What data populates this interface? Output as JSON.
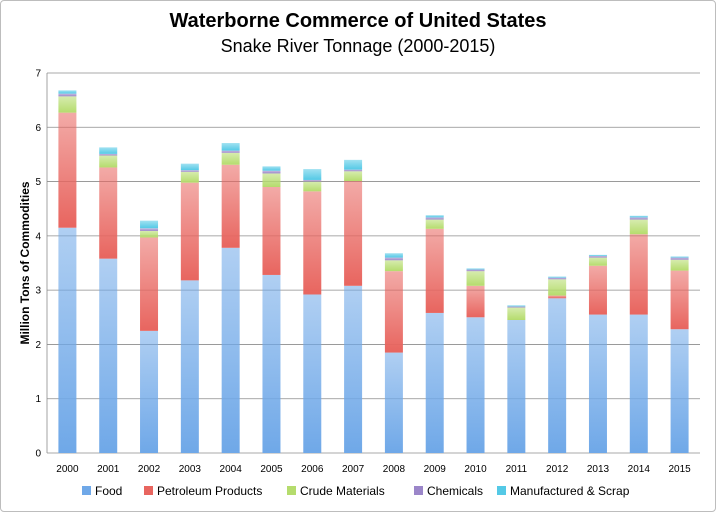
{
  "chart_data": {
    "type": "bar",
    "stacked": true,
    "title": "Waterborne Commerce of United States",
    "subtitle": "Snake River Tonnage (2000-2015)",
    "xlabel": "",
    "ylabel": "Million Tons of Commodities",
    "ylim": [
      0,
      7
    ],
    "yticks": [
      "0",
      "1",
      "2",
      "3",
      "4",
      "5",
      "6",
      "7"
    ],
    "grid": true,
    "legend_position": "bottom",
    "categories": [
      "2000",
      "2001",
      "2002",
      "2003",
      "2004",
      "2005",
      "2006",
      "2007",
      "2008",
      "2009",
      "2010",
      "2011",
      "2012",
      "2013",
      "2014",
      "2015"
    ],
    "series": [
      {
        "name": "Food",
        "color": "#6fa8e8",
        "values": [
          4.15,
          3.58,
          2.25,
          3.18,
          3.78,
          3.28,
          2.92,
          3.08,
          1.85,
          2.58,
          2.5,
          2.45,
          2.85,
          2.55,
          2.55,
          2.28
        ]
      },
      {
        "name": "Petroleum Products",
        "color": "#e8655f",
        "values": [
          2.12,
          1.68,
          1.72,
          1.8,
          1.53,
          1.62,
          1.9,
          1.93,
          1.5,
          1.55,
          0.58,
          0.0,
          0.05,
          0.9,
          1.48,
          1.08
        ]
      },
      {
        "name": "Crude Materials",
        "color": "#b5dc6d",
        "values": [
          0.3,
          0.22,
          0.12,
          0.2,
          0.22,
          0.25,
          0.18,
          0.18,
          0.2,
          0.17,
          0.27,
          0.23,
          0.3,
          0.15,
          0.27,
          0.2
        ]
      },
      {
        "name": "Chemicals",
        "color": "#9b86c9",
        "values": [
          0.05,
          0.03,
          0.05,
          0.03,
          0.04,
          0.05,
          0.03,
          0.03,
          0.05,
          0.04,
          0.03,
          0.02,
          0.03,
          0.03,
          0.04,
          0.04
        ]
      },
      {
        "name": "Manufactured & Scrap",
        "color": "#54c9e6",
        "values": [
          0.06,
          0.12,
          0.14,
          0.12,
          0.14,
          0.08,
          0.2,
          0.18,
          0.08,
          0.04,
          0.02,
          0.02,
          0.02,
          0.02,
          0.03,
          0.02
        ]
      }
    ]
  }
}
